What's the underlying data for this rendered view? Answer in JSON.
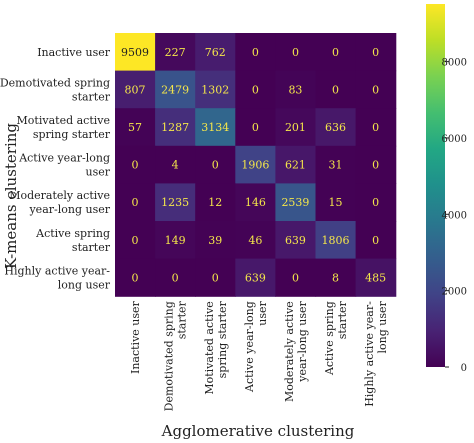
{
  "chart_data": {
    "type": "heatmap",
    "xlabel": "Agglomerative clustering",
    "ylabel": "K-means clustering",
    "rows": [
      [
        "Inactive user"
      ],
      [
        "Demotivated spring",
        "starter"
      ],
      [
        "Motivated active",
        "spring starter"
      ],
      [
        "Active year-long",
        "user"
      ],
      [
        "Moderately active",
        "year-long user"
      ],
      [
        "Active spring",
        "starter"
      ],
      [
        "Highly active year-",
        "long user"
      ]
    ],
    "columns": [
      [
        "Inactive user"
      ],
      [
        "Demotivated spring",
        "starter"
      ],
      [
        "Motivated active",
        "spring starter"
      ],
      [
        "Active year-long",
        "user"
      ],
      [
        "Moderately active",
        "year-long user"
      ],
      [
        "Active spring",
        "starter"
      ],
      [
        "Highly active year-",
        "long user"
      ]
    ],
    "values": [
      [
        9509,
        227,
        762,
        0,
        0,
        0,
        0
      ],
      [
        807,
        2479,
        1302,
        0,
        83,
        0,
        0
      ],
      [
        57,
        1287,
        3134,
        0,
        201,
        636,
        0
      ],
      [
        0,
        4,
        0,
        1906,
        621,
        31,
        0
      ],
      [
        0,
        1235,
        12,
        146,
        2539,
        15,
        0
      ],
      [
        0,
        149,
        39,
        46,
        639,
        1806,
        0
      ],
      [
        0,
        0,
        0,
        639,
        0,
        8,
        485
      ]
    ],
    "colorbar": {
      "colormap": "viridis",
      "range": [
        0,
        9509
      ],
      "ticks": [
        0,
        2000,
        4000,
        6000,
        8000
      ],
      "low_color": "#440154",
      "high_color": "#fde725"
    }
  }
}
